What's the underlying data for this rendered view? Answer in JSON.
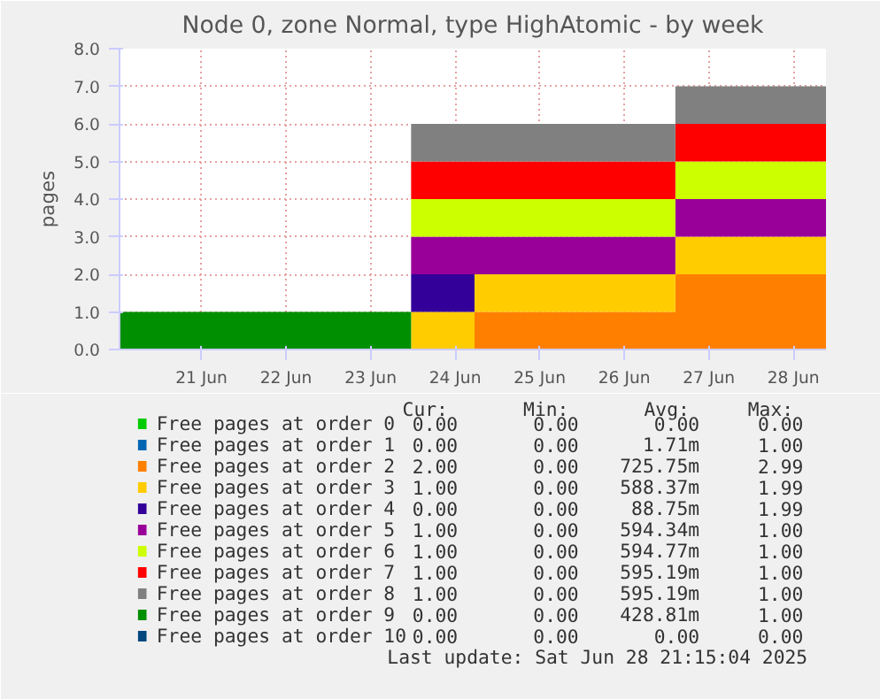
{
  "chart_data": {
    "type": "area",
    "stacked": true,
    "title": "Node 0, zone Normal, type HighAtomic - by week",
    "ylabel": "pages",
    "x": [
      "2025-06-20T12:45",
      "2025-06-23T23:30",
      "2025-06-23T23:30",
      "2025-06-24T17:30",
      "2025-06-24T17:30",
      "2025-06-27T02:30",
      "2025-06-27T02:30",
      "2025-06-28T21:15"
    ],
    "xlim": [
      "2025-06-20T12:45",
      "2025-06-28T21:15"
    ],
    "xticks": [
      {
        "value": "2025-06-21T12:00",
        "label": "21 Jun"
      },
      {
        "value": "2025-06-22T12:00",
        "label": "22 Jun"
      },
      {
        "value": "2025-06-23T12:00",
        "label": "23 Jun"
      },
      {
        "value": "2025-06-24T12:00",
        "label": "24 Jun"
      },
      {
        "value": "2025-06-25T12:00",
        "label": "25 Jun"
      },
      {
        "value": "2025-06-26T12:00",
        "label": "26 Jun"
      },
      {
        "value": "2025-06-27T12:00",
        "label": "27 Jun"
      },
      {
        "value": "2025-06-28T12:00",
        "label": "28 Jun"
      }
    ],
    "ylim": [
      0,
      8
    ],
    "yticks": [
      {
        "value": 0,
        "label": "0.0"
      },
      {
        "value": 1,
        "label": "1.0"
      },
      {
        "value": 2,
        "label": "2.0"
      },
      {
        "value": 3,
        "label": "3.0"
      },
      {
        "value": 4,
        "label": "4.0"
      },
      {
        "value": 5,
        "label": "5.0"
      },
      {
        "value": 6,
        "label": "6.0"
      },
      {
        "value": 7,
        "label": "7.0"
      },
      {
        "value": 8,
        "label": "8.0"
      }
    ],
    "grid": true,
    "legend": "bottom",
    "series": [
      {
        "name": "Free pages at order  0",
        "color": "#00cc00",
        "values": [
          null,
          null,
          null,
          null,
          null,
          null,
          null,
          null
        ]
      },
      {
        "name": "Free pages at order  1",
        "color": "#0066b3",
        "values": [
          null,
          null,
          null,
          null,
          null,
          null,
          null,
          null
        ]
      },
      {
        "name": "Free pages at order  2",
        "color": "#ff8000",
        "values": [
          null,
          null,
          null,
          null,
          1,
          1,
          2,
          2
        ]
      },
      {
        "name": "Free pages at order  3",
        "color": "#ffcc00",
        "values": [
          null,
          null,
          1,
          1,
          1,
          1,
          1,
          1
        ]
      },
      {
        "name": "Free pages at order  4",
        "color": "#330099",
        "values": [
          null,
          null,
          1,
          1,
          null,
          null,
          null,
          null
        ]
      },
      {
        "name": "Free pages at order  5",
        "color": "#990099",
        "values": [
          null,
          null,
          1,
          1,
          1,
          1,
          1,
          1
        ]
      },
      {
        "name": "Free pages at order  6",
        "color": "#ccff00",
        "values": [
          null,
          null,
          1,
          1,
          1,
          1,
          1,
          1
        ]
      },
      {
        "name": "Free pages at order  7",
        "color": "#ff0000",
        "values": [
          null,
          null,
          1,
          1,
          1,
          1,
          1,
          1
        ]
      },
      {
        "name": "Free pages at order  8",
        "color": "#808080",
        "values": [
          null,
          null,
          1,
          1,
          1,
          1,
          1,
          1
        ]
      },
      {
        "name": "Free pages at order  9",
        "color": "#008f00",
        "values": [
          1,
          1,
          null,
          null,
          null,
          null,
          null,
          null
        ]
      },
      {
        "name": "Free pages at order 10",
        "color": "#00487d",
        "values": [
          null,
          null,
          null,
          null,
          null,
          null,
          null,
          null
        ]
      }
    ],
    "annotations": [
      "Cur:",
      "Min:",
      "Avg:",
      "Max:",
      "0.00",
      "0.00",
      "0.00",
      "0.00",
      "0.00",
      "0.00",
      "1.71m",
      "1.00",
      "2.00",
      "0.00",
      "725.75m",
      "2.99",
      "1.00",
      "0.00",
      "588.37m",
      "1.99",
      "0.00",
      "0.00",
      "88.75m",
      "1.99",
      "1.00",
      "0.00",
      "594.34m",
      "1.00",
      "1.00",
      "0.00",
      "594.77m",
      "1.00",
      "1.00",
      "0.00",
      "595.19m",
      "1.00",
      "1.00",
      "0.00",
      "595.19m",
      "1.00",
      "0.00",
      "0.00",
      "428.81m",
      "1.00",
      "0.00",
      "0.00",
      "0.00",
      "0.00",
      "Last update: Sat Jun 28 21:15:04 2025"
    ]
  }
}
